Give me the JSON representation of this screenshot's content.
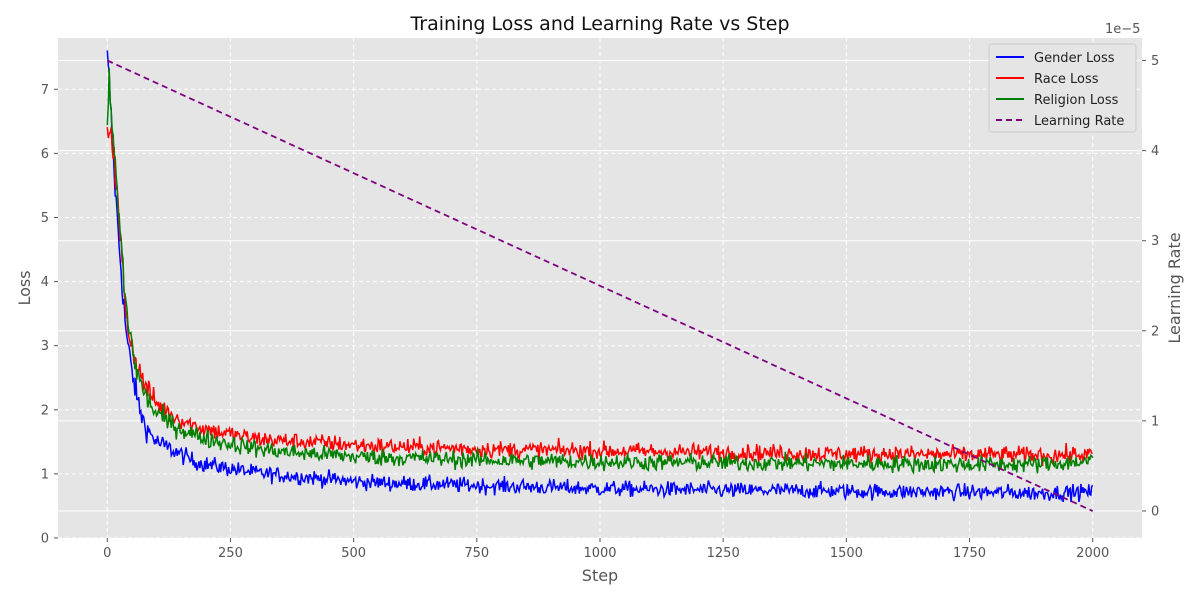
{
  "chart_data": {
    "type": "line",
    "title": "Training Loss and Learning Rate vs Step",
    "xlabel": "Step",
    "ylabel": "Loss",
    "y2label": "Learning Rate",
    "y2_offset_text": "1e−5",
    "xlim": [
      -100,
      2100
    ],
    "ylim": [
      0,
      7.8
    ],
    "y2lim": [
      -0.3,
      5.25
    ],
    "x_ticks": [
      0,
      250,
      500,
      750,
      1000,
      1250,
      1500,
      1750,
      2000
    ],
    "y_ticks": [
      0,
      1,
      2,
      3,
      4,
      5,
      6,
      7
    ],
    "y2_ticks": [
      0,
      1,
      2,
      3,
      4,
      5
    ],
    "grid": true,
    "legend_position": "top-right",
    "series": [
      {
        "name": "Gender Loss",
        "axis": "left",
        "color": "#0000ff",
        "style": "solid",
        "x": [
          0,
          5,
          10,
          15,
          20,
          25,
          30,
          35,
          40,
          50,
          60,
          70,
          80,
          90,
          100,
          125,
          150,
          175,
          200,
          250,
          300,
          350,
          400,
          450,
          500,
          600,
          700,
          800,
          900,
          1000,
          1100,
          1200,
          1300,
          1400,
          1500,
          1600,
          1700,
          1800,
          1900,
          2000
        ],
        "y": [
          7.45,
          7.0,
          6.2,
          5.6,
          5.0,
          4.5,
          4.0,
          3.5,
          3.1,
          2.6,
          2.2,
          1.9,
          1.7,
          1.6,
          1.5,
          1.4,
          1.3,
          1.2,
          1.15,
          1.08,
          1.02,
          0.98,
          0.95,
          0.92,
          0.88,
          0.85,
          0.83,
          0.81,
          0.79,
          0.77,
          0.76,
          0.75,
          0.74,
          0.74,
          0.73,
          0.72,
          0.72,
          0.71,
          0.7,
          0.72
        ],
        "noise": 0.11
      },
      {
        "name": "Race Loss",
        "axis": "left",
        "color": "#ff0000",
        "style": "solid",
        "x": [
          0,
          5,
          10,
          15,
          20,
          25,
          30,
          35,
          40,
          50,
          60,
          70,
          80,
          90,
          100,
          125,
          150,
          175,
          200,
          250,
          300,
          350,
          400,
          450,
          500,
          600,
          700,
          800,
          900,
          1000,
          1100,
          1200,
          1300,
          1400,
          1500,
          1600,
          1700,
          1800,
          1900,
          2000
        ],
        "y": [
          6.3,
          6.5,
          6.3,
          5.8,
          5.3,
          4.8,
          4.3,
          3.8,
          3.4,
          3.0,
          2.7,
          2.5,
          2.35,
          2.2,
          2.1,
          1.95,
          1.85,
          1.75,
          1.7,
          1.62,
          1.55,
          1.52,
          1.5,
          1.48,
          1.45,
          1.42,
          1.4,
          1.38,
          1.37,
          1.36,
          1.35,
          1.34,
          1.33,
          1.32,
          1.31,
          1.31,
          1.3,
          1.3,
          1.29,
          1.3
        ],
        "noise": 0.12
      },
      {
        "name": "Religion Loss",
        "axis": "left",
        "color": "#008000",
        "style": "solid",
        "x": [
          0,
          5,
          10,
          15,
          20,
          25,
          30,
          35,
          40,
          50,
          60,
          70,
          80,
          90,
          100,
          125,
          150,
          175,
          200,
          250,
          300,
          350,
          400,
          450,
          500,
          600,
          700,
          800,
          900,
          1000,
          1100,
          1200,
          1300,
          1400,
          1500,
          1600,
          1700,
          1800,
          1900,
          2000
        ],
        "y": [
          6.5,
          7.1,
          6.4,
          5.9,
          5.4,
          4.9,
          4.4,
          3.9,
          3.5,
          3.0,
          2.6,
          2.35,
          2.2,
          2.05,
          1.95,
          1.8,
          1.7,
          1.62,
          1.55,
          1.47,
          1.4,
          1.35,
          1.32,
          1.3,
          1.27,
          1.25,
          1.23,
          1.21,
          1.2,
          1.19,
          1.18,
          1.18,
          1.17,
          1.17,
          1.16,
          1.16,
          1.15,
          1.15,
          1.15,
          1.2
        ],
        "noise": 0.12
      },
      {
        "name": "Learning Rate",
        "axis": "right",
        "color": "#800080",
        "style": "dashed",
        "x": [
          0,
          2000
        ],
        "y": [
          5.0,
          0.0
        ],
        "noise": 0
      }
    ]
  }
}
